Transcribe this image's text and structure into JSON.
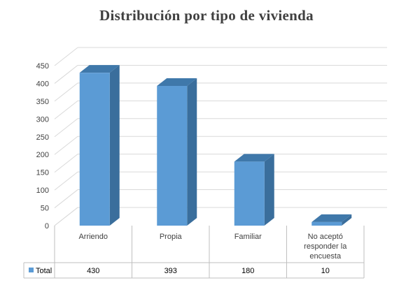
{
  "chart_data": {
    "type": "bar",
    "title": "Distribución por tipo de vivienda",
    "categories": [
      "Arriendo",
      "Propia",
      "Familiar",
      "No aceptó responder la encuesta"
    ],
    "category_lines": [
      [
        "Arriendo"
      ],
      [
        "Propia"
      ],
      [
        "Familiar"
      ],
      [
        "No aceptó",
        "responder la",
        "encuesta"
      ]
    ],
    "series": [
      {
        "name": "Total",
        "values": [
          430,
          393,
          180,
          10
        ],
        "color": "#5B9BD5"
      }
    ],
    "ylim": [
      0,
      450
    ],
    "yticks": [
      0,
      50,
      100,
      150,
      200,
      250,
      300,
      350,
      400,
      450
    ],
    "grid": true,
    "legend": "data-table",
    "data_table": true
  }
}
